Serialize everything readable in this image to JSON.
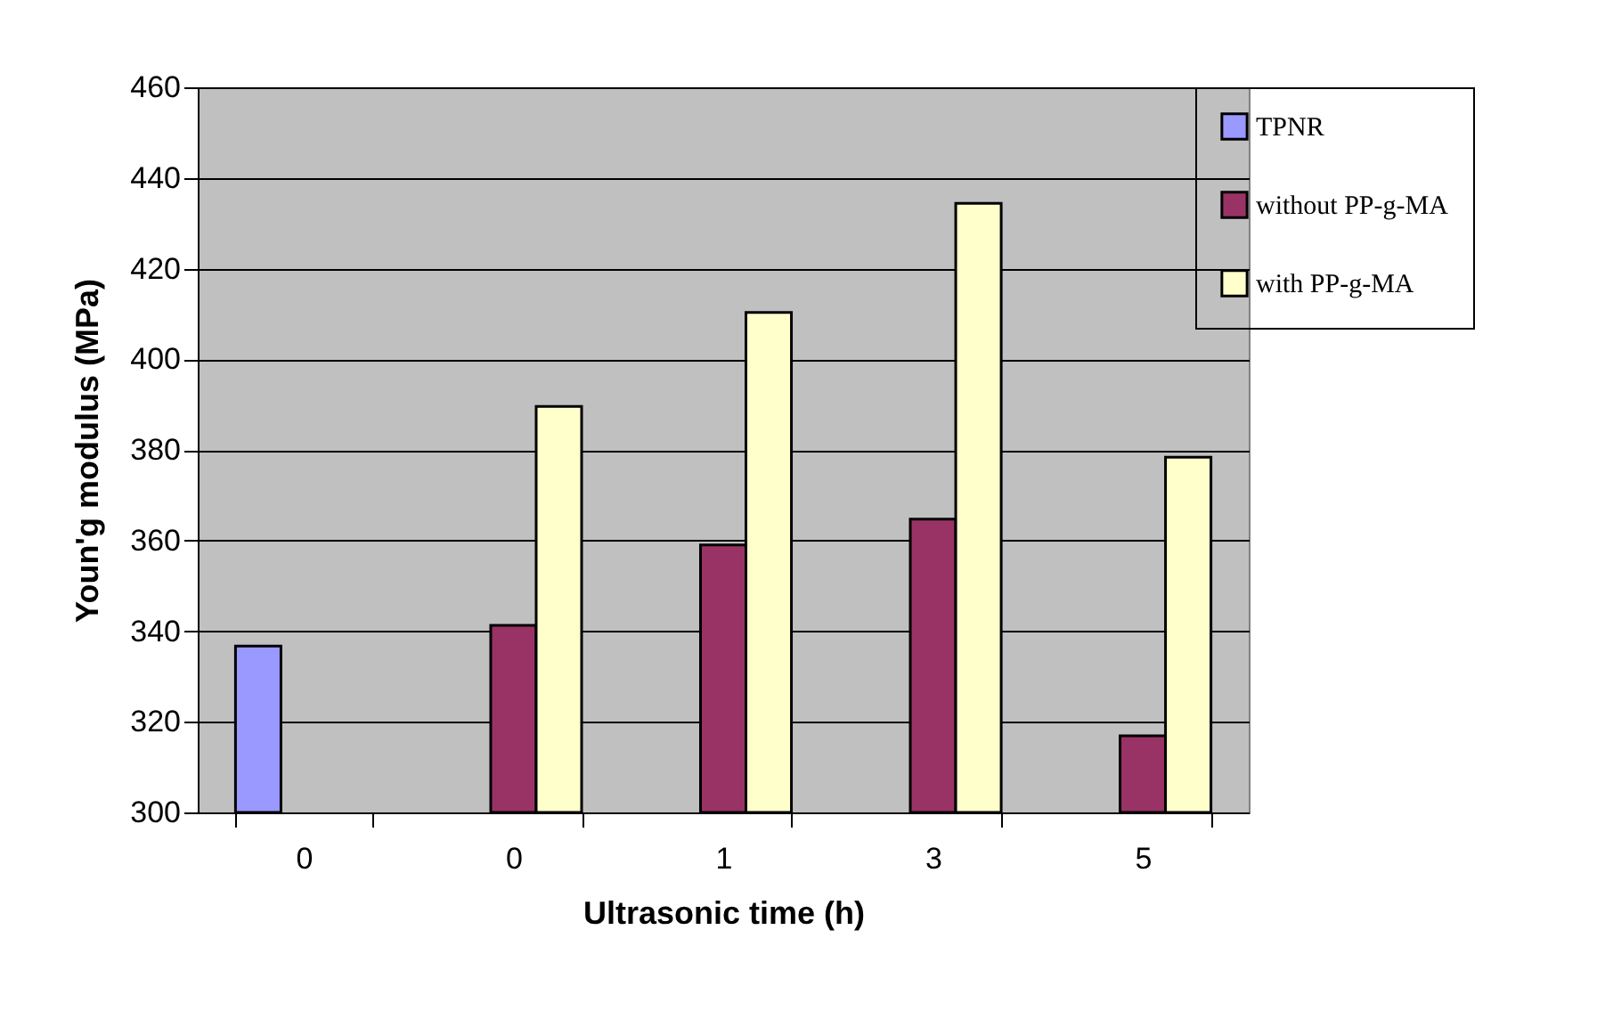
{
  "chart_data": {
    "type": "bar",
    "xlabel": "Ultrasonic time (h)",
    "ylabel": "Youn'g modulus (MPa)",
    "categories": [
      "0",
      "0",
      "1",
      "3",
      "5"
    ],
    "series": [
      {
        "name": "TPNR",
        "color": "#9999ff",
        "values": [
          336.7,
          null,
          null,
          null,
          null
        ]
      },
      {
        "name": "without PP-g-MA",
        "color": "#993366",
        "values": [
          null,
          341.3,
          359,
          364.7,
          316.9
        ]
      },
      {
        "name": "with PP-g-MA",
        "color": "#ffffcc",
        "values": [
          null,
          389.6,
          410.3,
          434.4,
          378.4
        ]
      }
    ],
    "ylim": [
      300,
      460
    ],
    "yticks": [
      300,
      320,
      340,
      360,
      380,
      400,
      420,
      440,
      460
    ],
    "grid": "y",
    "legend": "right"
  }
}
